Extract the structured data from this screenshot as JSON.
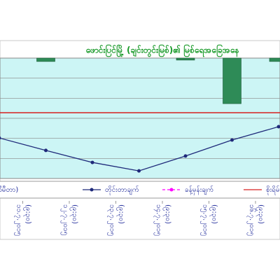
{
  "chart_data": {
    "type": "line",
    "title": "ဖောင်းပြင်မြို့ (ချင်းတွင်းမြစ်)၏ မြစ်ရေအခြေအနေ",
    "categories": [
      null,
      "၁၁.၇.၂၀၁၅",
      "၁၂.၇.၂၀၁၅",
      "၁၃.၇.၂၀၁၅",
      "၁၄.၇.၂၀၁၅",
      "၁၅.၇.၂၀၁၅",
      "၁၆.၇.၂၀၁၅"
    ],
    "time_labels": [
      null,
      "(၉:၃၀)",
      "(၉:၃၀)",
      "(၉:၃၀)",
      "(၉:၃၀)",
      "(၉:၃၀)",
      "(၉:၃၀)"
    ],
    "ylim": [
      0,
      6
    ],
    "y2lim": [
      0,
      6
    ],
    "y2_inverted": true,
    "grid": true,
    "series": [
      {
        "name": "မိုးရေချိန်(မီလီမီတာ)",
        "type": "bar",
        "axis": "y2",
        "color": "#2e8b57",
        "values": [
          null,
          0.17,
          null,
          null,
          0.1,
          2.27,
          0.17
        ]
      },
      {
        "name": "တိုင်းတာချက်",
        "type": "line",
        "color": "#1f2a7a",
        "values": [
          2.02,
          1.4,
          0.8,
          0.38,
          1.12,
          1.92,
          2.58
        ]
      },
      {
        "name": "ခန့်မှန်းချက်",
        "type": "line",
        "dashed": true,
        "color": "#ff00ff",
        "values": [
          null,
          null,
          null,
          null,
          null,
          null,
          null
        ]
      }
    ],
    "danger_level": {
      "name": "စိုးရိမ်ရေမှတ်",
      "value": 3.28,
      "color": "#d62020"
    }
  }
}
